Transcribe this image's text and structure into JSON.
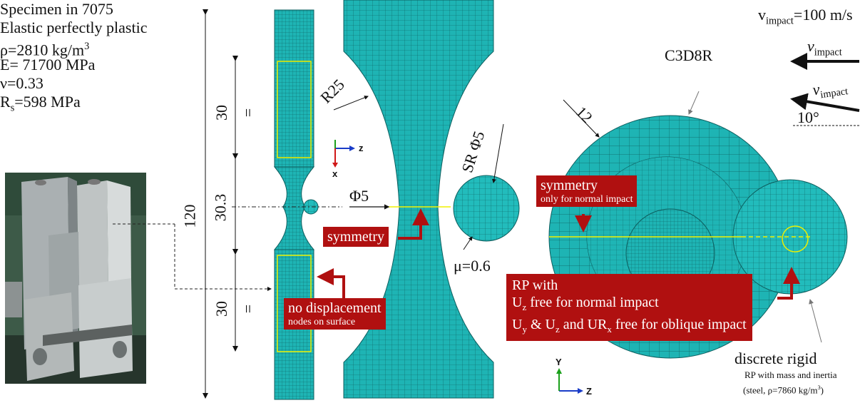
{
  "specimen": {
    "line1": "Specimen in 7075",
    "line2": "Elastic perfectly plastic",
    "rho": "ρ=2810 kg/m",
    "rho_sup": "3",
    "E": "E= 71700 MPa",
    "nu": "ν=0.33",
    "Rs_main": "R",
    "Rs_sub": "s",
    "Rs_rest": "=598 MPa"
  },
  "dims": {
    "total": "120",
    "top": "30",
    "mid": "30.3",
    "bottom": "30",
    "eq_top": "=",
    "eq_bottom": "=",
    "R25": "R25",
    "phi5": "Φ5",
    "SRphi5": "SR Φ5",
    "mu": "μ=0.6",
    "d12": "12",
    "angle": "10°"
  },
  "labels": {
    "symmetry_mid": "symmetry",
    "nodisp_line1": "no displacement",
    "nodisp_line2": "nodes on surface",
    "symmetry_right_line1": "symmetry",
    "symmetry_right_line2": "only for normal impact",
    "rp_line1": "RP with",
    "rp_line2a": "U",
    "rp_line2b": "z",
    "rp_line2c": " free for normal impact",
    "rp_line3a": "U",
    "rp_line3b": "y",
    "rp_line3c": " & U",
    "rp_line3d": "z",
    "rp_line3e": " and UR",
    "rp_line3f": "x",
    "rp_line3g": " free for oblique impact",
    "c3d8r": "C3D8R",
    "discrete_rigid": "discrete rigid",
    "rp_mass": "RP with mass and inertia",
    "steel": "(steel, ρ=7860 kg/m",
    "steel_sup": "3",
    "steel_close": ")"
  },
  "impact": {
    "v_main": "v",
    "v_sub": "impact",
    "v_value": "=100 m/s",
    "arrow1_v": "v",
    "arrow1_sub": "impact",
    "arrow2_v": "v",
    "arrow2_sub": "impact"
  },
  "axes": {
    "mid_z": "z",
    "mid_x": "x",
    "right_y": "Y",
    "right_z": "Z"
  },
  "colors": {
    "mesh": "#1eb4b4",
    "mesh_line": "#0c5656",
    "red": "#b01010",
    "highlight": "#f0f000"
  }
}
